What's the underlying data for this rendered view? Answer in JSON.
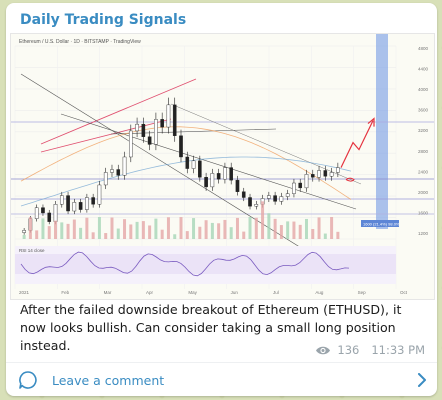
{
  "post": {
    "channel_name": "Daily Trading Signals",
    "caption": "After the failed downside breakout of Ethereum (ETHUSD), it now looks bullish. Can consider taking a small long position instead.",
    "views": "136",
    "time": "11:33 PM"
  },
  "comment": {
    "label": "Leave a comment"
  },
  "icons": {
    "views": "eye-icon",
    "comment": "comment-bubble-icon",
    "chevron": "chevron-right-icon"
  },
  "colors": {
    "accent": "#3a8cc2",
    "up_arrow": "#e5333f",
    "forecast_band": "#7ea2e6"
  },
  "chart_data": {
    "type": "candlestick",
    "symbol_header": "Ethereum / U.S. Dollar · 1D · BITSTAMP · TradingView",
    "indicator_label": "RSI 14 close",
    "x_tick_labels": [
      "2021",
      "Feb",
      "Mar",
      "Apr",
      "May",
      "Jun",
      "Jul",
      "Aug",
      "Sep",
      "Oct"
    ],
    "y_tick_labels": [
      "4800",
      "4400",
      "4000",
      "3600",
      "3200",
      "2800",
      "2400",
      "2000",
      "1600",
      "1200"
    ],
    "projection_label": "1600 (21.4%) 98.0%",
    "closes": [
      1180,
      1420,
      1650,
      1540,
      1360,
      1720,
      1900,
      1580,
      1760,
      1610,
      1860,
      1720,
      2120,
      2380,
      2440,
      2320,
      2700,
      3240,
      3380,
      3120,
      2960,
      3480,
      3320,
      3780,
      3140,
      2700,
      2460,
      2620,
      2280,
      2080,
      2360,
      2240,
      2480,
      2220,
      1980,
      1860,
      1680,
      1720,
      1840,
      1900,
      1780,
      1880,
      1940,
      2160,
      2060,
      2340,
      2280,
      2420,
      2300,
      2380,
      2480
    ]
  }
}
